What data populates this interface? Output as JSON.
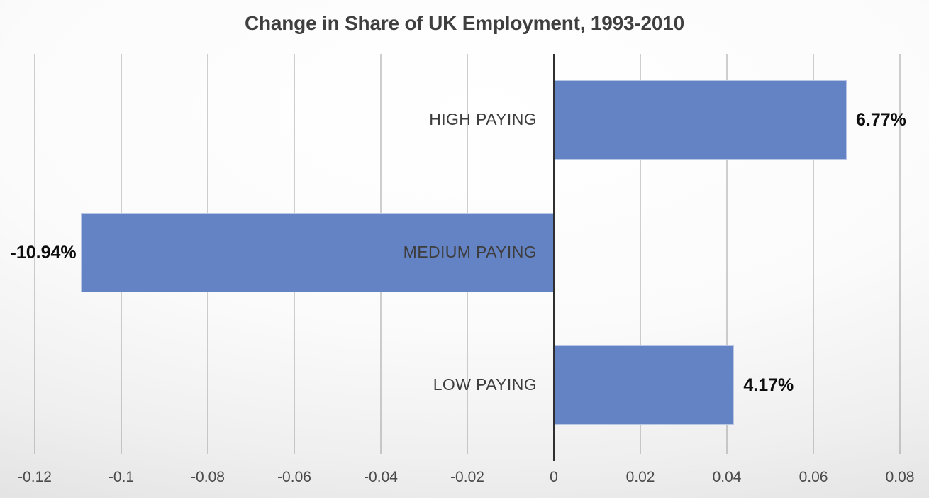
{
  "title": "Change in Share of UK Employment, 1993-2010",
  "chart_data": {
    "type": "bar",
    "orientation": "horizontal",
    "title": "Change in Share of UK Employment, 1993-2010",
    "categories": [
      "HIGH PAYING",
      "MEDIUM PAYING",
      "LOW PAYING"
    ],
    "values": [
      0.0677,
      -0.1094,
      0.0417
    ],
    "data_labels": [
      "6.77%",
      "-10.94%",
      "4.17%"
    ],
    "xlabel": "",
    "ylabel": "",
    "xlim": [
      -0.12,
      0.08
    ],
    "x_ticks": [
      -0.12,
      -0.1,
      -0.08,
      -0.06,
      -0.04,
      -0.02,
      0,
      0.02,
      0.04,
      0.06,
      0.08
    ],
    "x_tick_labels": [
      "-0.12",
      "-0.1",
      "-0.08",
      "-0.06",
      "-0.04",
      "-0.02",
      "0",
      "0.02",
      "0.04",
      "0.06",
      "0.08"
    ],
    "grid": true,
    "legend": "none",
    "bar_color": "#6483C4",
    "axis_color": "#2f2f2f",
    "title_color": "#3f3f3f"
  }
}
